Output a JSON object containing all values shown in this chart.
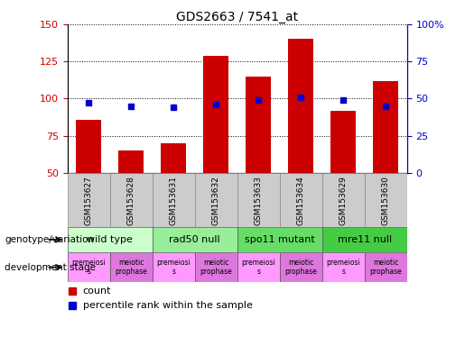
{
  "title": "GDS2663 / 7541_at",
  "samples": [
    "GSM153627",
    "GSM153628",
    "GSM153631",
    "GSM153632",
    "GSM153633",
    "GSM153634",
    "GSM153629",
    "GSM153630"
  ],
  "counts": [
    86,
    65,
    70,
    129,
    115,
    140,
    92,
    112
  ],
  "percentiles": [
    47,
    45,
    44,
    46,
    49,
    51,
    49,
    45
  ],
  "ylim_left": [
    50,
    150
  ],
  "ylim_right": [
    0,
    100
  ],
  "yticks_left": [
    50,
    75,
    100,
    125,
    150
  ],
  "yticks_right": [
    0,
    25,
    50,
    75,
    100
  ],
  "ytick_labels_right": [
    "0",
    "25",
    "50",
    "75",
    "100%"
  ],
  "bar_color": "#cc0000",
  "dot_color": "#0000cc",
  "genotype_groups": [
    {
      "label": "wild type",
      "start": 0,
      "end": 2,
      "color": "#ccffcc"
    },
    {
      "label": "rad50 null",
      "start": 2,
      "end": 4,
      "color": "#99ee99"
    },
    {
      "label": "spo11 mutant",
      "start": 4,
      "end": 6,
      "color": "#66dd66"
    },
    {
      "label": "mre11 null",
      "start": 6,
      "end": 8,
      "color": "#44cc44"
    }
  ],
  "dev_stages": [
    {
      "label": "premeiosi\ns",
      "start": 0,
      "end": 1,
      "color": "#ff99ff"
    },
    {
      "label": "meiotic\nprophase",
      "start": 1,
      "end": 2,
      "color": "#dd77dd"
    },
    {
      "label": "premeiosi\ns",
      "start": 2,
      "end": 3,
      "color": "#ff99ff"
    },
    {
      "label": "meiotic\nprophase",
      "start": 3,
      "end": 4,
      "color": "#dd77dd"
    },
    {
      "label": "premeiosi\ns",
      "start": 4,
      "end": 5,
      "color": "#ff99ff"
    },
    {
      "label": "meiotic\nprophase",
      "start": 5,
      "end": 6,
      "color": "#dd77dd"
    },
    {
      "label": "premeiosi\ns",
      "start": 6,
      "end": 7,
      "color": "#ff99ff"
    },
    {
      "label": "meiotic\nprophase",
      "start": 7,
      "end": 8,
      "color": "#dd77dd"
    }
  ],
  "left_label_color": "#cc0000",
  "right_label_color": "#0000cc",
  "bg_color": "#ffffff",
  "plot_bg_color": "#ffffff",
  "sample_bg_color": "#cccccc",
  "legend_count_color": "#cc0000",
  "legend_dot_color": "#0000cc"
}
